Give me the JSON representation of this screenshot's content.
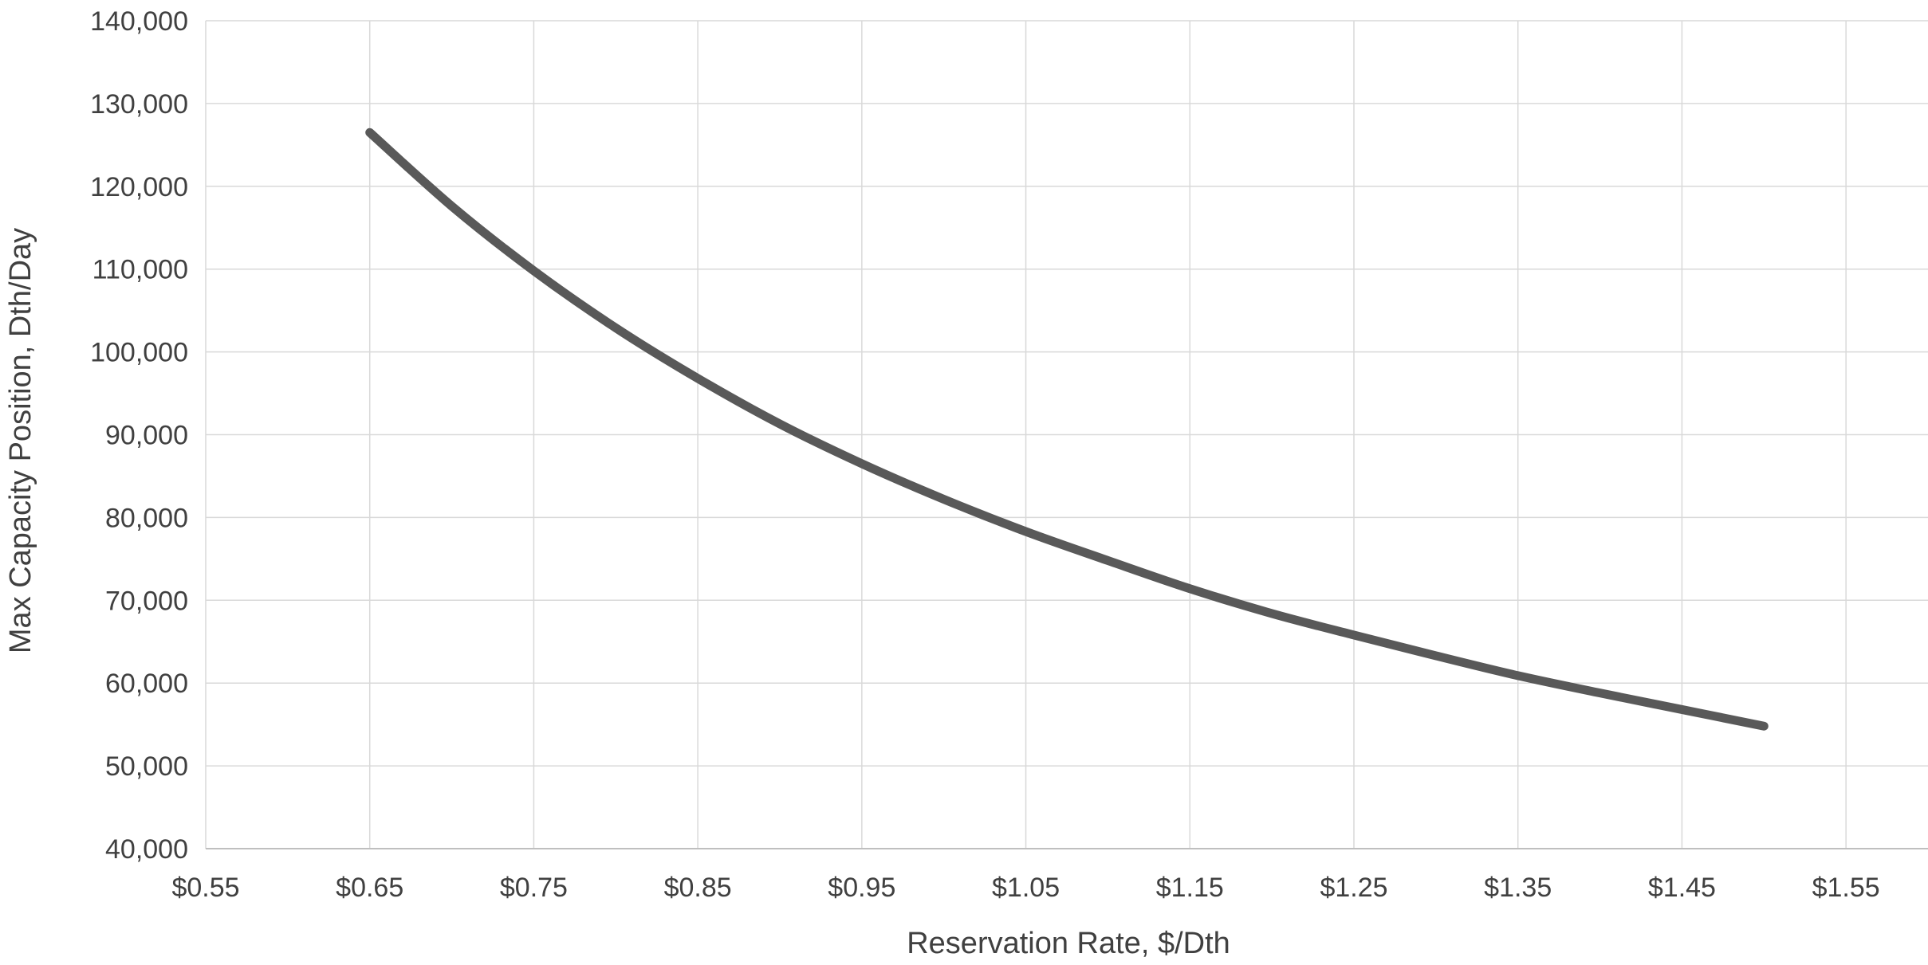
{
  "chart_data": {
    "type": "line",
    "title": "",
    "xlabel": "Reservation Rate, $/Dth",
    "ylabel": "Max Capacity Position, Dth/Day",
    "xlim": [
      0.55,
      1.6
    ],
    "ylim": [
      40000,
      140000
    ],
    "x_ticks": [
      0.55,
      0.65,
      0.75,
      0.85,
      0.95,
      1.05,
      1.15,
      1.25,
      1.35,
      1.45,
      1.55
    ],
    "x_tick_labels": [
      "$0.55",
      "$0.65",
      "$0.75",
      "$0.85",
      "$0.95",
      "$1.05",
      "$1.15",
      "$1.25",
      "$1.35",
      "$1.45",
      "$1.55"
    ],
    "y_ticks": [
      40000,
      50000,
      60000,
      70000,
      80000,
      90000,
      100000,
      110000,
      120000,
      130000,
      140000
    ],
    "y_tick_labels": [
      "40,000",
      "50,000",
      "60,000",
      "70,000",
      "80,000",
      "90,000",
      "100,000",
      "110,000",
      "120,000",
      "130,000",
      "140,000"
    ],
    "grid": true,
    "legend": "none",
    "line_color": "#595959",
    "series": [
      {
        "x": [
          0.65,
          0.7,
          0.75,
          0.8,
          0.85,
          0.9,
          0.95,
          1.0,
          1.05,
          1.1,
          1.15,
          1.2,
          1.25,
          1.3,
          1.35,
          1.4,
          1.45,
          1.5
        ],
        "values": [
          126500,
          117600,
          109800,
          102900,
          96800,
          91300,
          86500,
          82200,
          78300,
          74800,
          71400,
          68400,
          65800,
          63300,
          60900,
          58800,
          56800,
          54800
        ]
      }
    ]
  }
}
